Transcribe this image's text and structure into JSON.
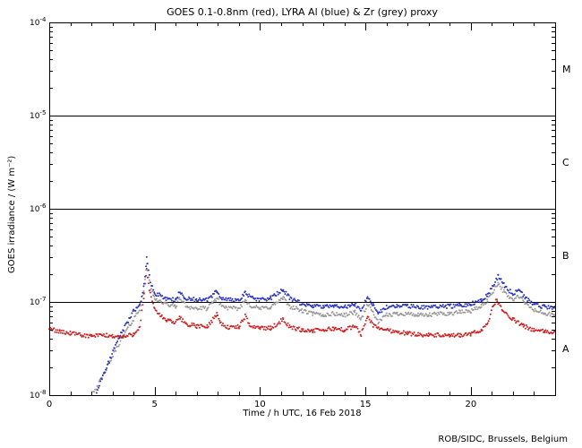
{
  "title": "GOES 0.1-0.8nm (red), LYRA Al (blue) & Zr (grey) proxy",
  "footer": "ROB/SIDC, Brussels, Belgium",
  "chart_data": {
    "type": "scatter",
    "title": "GOES 0.1-0.8nm (red), LYRA Al (blue) & Zr (grey) proxy",
    "xlabel": "Time / h UTC, 16 Feb 2018",
    "ylabel": "GOES irradiance / (W m⁻²)",
    "xlim": [
      0,
      24
    ],
    "ylim": [
      1e-08,
      0.0001
    ],
    "y_scale": "log10",
    "grid": false,
    "x_major_ticks": [
      0,
      5,
      10,
      15,
      20
    ],
    "x_minor_step": 1,
    "y_decade_exponents": [
      -4,
      -5,
      -6,
      -7,
      -8
    ],
    "hlines": [
      1e-05,
      1e-06,
      1e-07
    ],
    "flare_class_labels": [
      {
        "label": "M",
        "value": 3.16e-05
      },
      {
        "label": "C",
        "value": 3.16e-06
      },
      {
        "label": "B",
        "value": 3.16e-07
      },
      {
        "label": "A",
        "value": 3.16e-08
      }
    ],
    "series": [
      {
        "name": "LYRA Zr proxy",
        "color": "#9a9a9a",
        "points": [
          [
            2.0,
            1e-08
          ],
          [
            2.4,
            1.4e-08
          ],
          [
            2.8,
            2.1e-08
          ],
          [
            3.2,
            3.2e-08
          ],
          [
            3.6,
            4.7e-08
          ],
          [
            4.0,
            6.5e-08
          ],
          [
            4.3,
            8.5e-08
          ],
          [
            4.5,
            1.3e-07
          ],
          [
            4.62,
            2.6e-07
          ],
          [
            4.8,
            1.4e-07
          ],
          [
            5.0,
            1.1e-07
          ],
          [
            5.5,
            9.5e-08
          ],
          [
            6.0,
            9e-08
          ],
          [
            6.2,
            1.1e-07
          ],
          [
            6.5,
            9e-08
          ],
          [
            7.0,
            8.5e-08
          ],
          [
            7.5,
            8.5e-08
          ],
          [
            7.95,
            1.1e-07
          ],
          [
            8.2,
            9e-08
          ],
          [
            8.6,
            8.5e-08
          ],
          [
            9.0,
            8.5e-08
          ],
          [
            9.3,
            1.05e-07
          ],
          [
            9.6,
            9e-08
          ],
          [
            10.0,
            8.5e-08
          ],
          [
            10.5,
            8.8e-08
          ],
          [
            11.1,
            1.1e-07
          ],
          [
            11.4,
            9e-08
          ],
          [
            12.0,
            8e-08
          ],
          [
            12.5,
            7.5e-08
          ],
          [
            13.0,
            7.2e-08
          ],
          [
            13.5,
            7.5e-08
          ],
          [
            14.0,
            7.2e-08
          ],
          [
            14.5,
            7.8e-08
          ],
          [
            14.8,
            6.5e-08
          ],
          [
            15.1,
            9.5e-08
          ],
          [
            15.4,
            7.5e-08
          ],
          [
            15.6,
            6e-08
          ],
          [
            16.0,
            7.2e-08
          ],
          [
            16.5,
            7.5e-08
          ],
          [
            17.0,
            7.5e-08
          ],
          [
            17.5,
            7.2e-08
          ],
          [
            18.0,
            7.2e-08
          ],
          [
            18.5,
            7.5e-08
          ],
          [
            19.0,
            7.5e-08
          ],
          [
            19.5,
            7.8e-08
          ],
          [
            20.0,
            8e-08
          ],
          [
            20.5,
            9e-08
          ],
          [
            20.8,
            1.05e-07
          ],
          [
            21.3,
            1.6e-07
          ],
          [
            21.6,
            1.25e-07
          ],
          [
            22.0,
            1.05e-07
          ],
          [
            22.3,
            1.15e-07
          ],
          [
            22.6,
            9.5e-08
          ],
          [
            23.0,
            8.2e-08
          ],
          [
            23.5,
            7.5e-08
          ],
          [
            24.0,
            7.2e-08
          ]
        ]
      },
      {
        "name": "GOES 0.1-0.8nm",
        "color": "#cc2222",
        "points": [
          [
            0.0,
            5.2e-08
          ],
          [
            0.5,
            4.8e-08
          ],
          [
            1.0,
            4.6e-08
          ],
          [
            1.5,
            4.4e-08
          ],
          [
            2.0,
            4.3e-08
          ],
          [
            2.5,
            4.4e-08
          ],
          [
            3.0,
            4.3e-08
          ],
          [
            3.5,
            4.2e-08
          ],
          [
            4.0,
            4.5e-08
          ],
          [
            4.3,
            5.5e-08
          ],
          [
            4.5,
            1.2e-07
          ],
          [
            4.62,
            2.2e-07
          ],
          [
            4.75,
            1.3e-07
          ],
          [
            5.0,
            8.5e-08
          ],
          [
            5.3,
            7e-08
          ],
          [
            5.6,
            6.3e-08
          ],
          [
            6.0,
            6e-08
          ],
          [
            6.2,
            6.8e-08
          ],
          [
            6.5,
            5.8e-08
          ],
          [
            7.0,
            5.5e-08
          ],
          [
            7.5,
            5.4e-08
          ],
          [
            7.95,
            7.5e-08
          ],
          [
            8.1,
            6e-08
          ],
          [
            8.5,
            5.3e-08
          ],
          [
            9.0,
            5.4e-08
          ],
          [
            9.3,
            7e-08
          ],
          [
            9.5,
            5.6e-08
          ],
          [
            10.0,
            5.3e-08
          ],
          [
            10.5,
            5.2e-08
          ],
          [
            11.1,
            6.5e-08
          ],
          [
            11.4,
            5.4e-08
          ],
          [
            12.0,
            5e-08
          ],
          [
            12.5,
            4.9e-08
          ],
          [
            13.0,
            5e-08
          ],
          [
            13.5,
            5.2e-08
          ],
          [
            14.0,
            5e-08
          ],
          [
            14.5,
            5.5e-08
          ],
          [
            14.8,
            4.5e-08
          ],
          [
            15.1,
            7e-08
          ],
          [
            15.4,
            5.5e-08
          ],
          [
            16.0,
            5e-08
          ],
          [
            16.5,
            4.8e-08
          ],
          [
            17.0,
            4.6e-08
          ],
          [
            17.5,
            4.5e-08
          ],
          [
            18.0,
            4.4e-08
          ],
          [
            18.5,
            4.4e-08
          ],
          [
            19.0,
            4.3e-08
          ],
          [
            19.5,
            4.4e-08
          ],
          [
            20.0,
            4.5e-08
          ],
          [
            20.5,
            5e-08
          ],
          [
            20.8,
            6e-08
          ],
          [
            21.1,
            9.5e-08
          ],
          [
            21.25,
            1.05e-07
          ],
          [
            21.5,
            8e-08
          ],
          [
            22.0,
            6.5e-08
          ],
          [
            22.5,
            5.5e-08
          ],
          [
            23.0,
            5e-08
          ],
          [
            23.5,
            4.8e-08
          ],
          [
            24.0,
            4.7e-08
          ]
        ]
      },
      {
        "name": "LYRA Al proxy",
        "color": "#2a35c0",
        "points": [
          [
            2.2,
            1e-08
          ],
          [
            2.5,
            1.5e-08
          ],
          [
            2.8,
            2.2e-08
          ],
          [
            3.1,
            3.2e-08
          ],
          [
            3.4,
            4.5e-08
          ],
          [
            3.7,
            6e-08
          ],
          [
            4.0,
            8e-08
          ],
          [
            4.3,
            9.5e-08
          ],
          [
            4.5,
            1.5e-07
          ],
          [
            4.62,
            3e-07
          ],
          [
            4.8,
            1.6e-07
          ],
          [
            5.0,
            1.25e-07
          ],
          [
            5.5,
            1.1e-07
          ],
          [
            6.0,
            1.05e-07
          ],
          [
            6.2,
            1.3e-07
          ],
          [
            6.4,
            1.1e-07
          ],
          [
            7.0,
            1.05e-07
          ],
          [
            7.5,
            1.05e-07
          ],
          [
            7.95,
            1.3e-07
          ],
          [
            8.2,
            1.1e-07
          ],
          [
            8.6,
            1.05e-07
          ],
          [
            9.0,
            1.05e-07
          ],
          [
            9.3,
            1.25e-07
          ],
          [
            9.6,
            1.1e-07
          ],
          [
            10.0,
            1.05e-07
          ],
          [
            10.5,
            1.1e-07
          ],
          [
            11.1,
            1.35e-07
          ],
          [
            11.4,
            1.1e-07
          ],
          [
            12.0,
            9.5e-08
          ],
          [
            12.5,
            9e-08
          ],
          [
            13.0,
            8.8e-08
          ],
          [
            13.5,
            9.2e-08
          ],
          [
            14.0,
            8.8e-08
          ],
          [
            14.5,
            9.5e-08
          ],
          [
            14.8,
            8e-08
          ],
          [
            15.1,
            1.15e-07
          ],
          [
            15.4,
            9e-08
          ],
          [
            15.6,
            7.5e-08
          ],
          [
            16.0,
            8.8e-08
          ],
          [
            16.5,
            9e-08
          ],
          [
            17.0,
            9e-08
          ],
          [
            17.5,
            8.8e-08
          ],
          [
            18.0,
            8.8e-08
          ],
          [
            18.5,
            9e-08
          ],
          [
            19.0,
            9e-08
          ],
          [
            19.5,
            9.2e-08
          ],
          [
            20.0,
            9.5e-08
          ],
          [
            20.5,
            1.05e-07
          ],
          [
            20.8,
            1.2e-07
          ],
          [
            21.3,
            1.9e-07
          ],
          [
            21.6,
            1.5e-07
          ],
          [
            22.0,
            1.2e-07
          ],
          [
            22.3,
            1.35e-07
          ],
          [
            22.6,
            1.1e-07
          ],
          [
            23.0,
            9.5e-08
          ],
          [
            23.5,
            8.8e-08
          ],
          [
            24.0,
            8.5e-08
          ]
        ]
      }
    ]
  }
}
